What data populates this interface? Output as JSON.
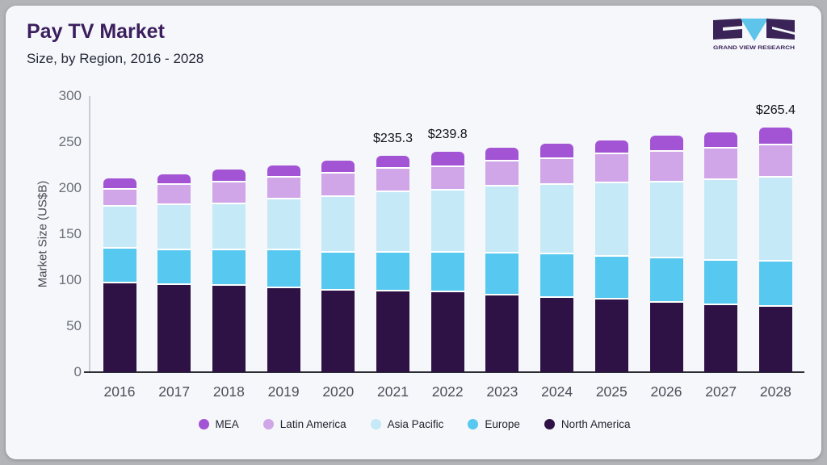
{
  "header": {
    "title": "Pay TV Market",
    "subtitle": "Size, by Region, 2016 - 2028"
  },
  "logo": {
    "brand": "GRAND VIEW RESEARCH",
    "dark_color": "#3a2357",
    "accent_color": "#5ec4ea"
  },
  "chart_data": {
    "type": "bar",
    "variant": "stacked",
    "title": "Pay TV Market",
    "subtitle": "Size, by Region, 2016 - 2028",
    "xlabel": "",
    "ylabel": "Market Size (US$B)",
    "ylim": [
      0,
      300
    ],
    "yticks": [
      0,
      50,
      100,
      150,
      200,
      250,
      300
    ],
    "grid": false,
    "legend_position": "bottom",
    "categories": [
      "2016",
      "2017",
      "2018",
      "2019",
      "2020",
      "2021",
      "2022",
      "2023",
      "2024",
      "2025",
      "2026",
      "2027",
      "2028"
    ],
    "series": [
      {
        "name": "North America",
        "color": "#2e1245",
        "values": [
          97.5,
          96.3,
          95.2,
          92.5,
          90.2,
          88.7,
          87.8,
          84.8,
          81.9,
          79.9,
          76.9,
          74.2,
          72.6
        ]
      },
      {
        "name": "Europe",
        "color": "#57c8f0",
        "values": [
          37.9,
          37.2,
          38.0,
          41.0,
          41.0,
          42.3,
          43.2,
          45.6,
          47.1,
          46.4,
          47.7,
          48.2,
          49.0
        ]
      },
      {
        "name": "Asia Pacific",
        "color": "#c6e9f7",
        "values": [
          45.4,
          49.2,
          50.3,
          54.9,
          59.9,
          64.9,
          67.2,
          72.2,
          74.8,
          79.5,
          82.4,
          87.5,
          90.6
        ]
      },
      {
        "name": "Latin America",
        "color": "#d0a6e9",
        "values": [
          17.8,
          21.2,
          23.2,
          23.4,
          25.3,
          25.6,
          25.4,
          26.3,
          28.5,
          31.2,
          32.6,
          33.4,
          34.8
        ]
      },
      {
        "name": "MEA",
        "color": "#a254d4",
        "values": [
          12.2,
          11.4,
          13.2,
          12.8,
          13.2,
          13.8,
          16.2,
          15.4,
          15.7,
          15.2,
          17.0,
          17.5,
          18.4
        ]
      }
    ],
    "totals": [
      210.8,
      215.3,
      219.9,
      224.6,
      229.6,
      235.3,
      239.8,
      244.3,
      248.0,
      252.2,
      256.6,
      260.8,
      265.4
    ],
    "annotations": [
      {
        "category": "2021",
        "text": "$235.3"
      },
      {
        "category": "2022",
        "text": "$239.8"
      },
      {
        "category": "2028",
        "text": "$265.4"
      }
    ],
    "legend_order": [
      "MEA",
      "Latin America",
      "Asia Pacific",
      "Europe",
      "North America"
    ]
  }
}
